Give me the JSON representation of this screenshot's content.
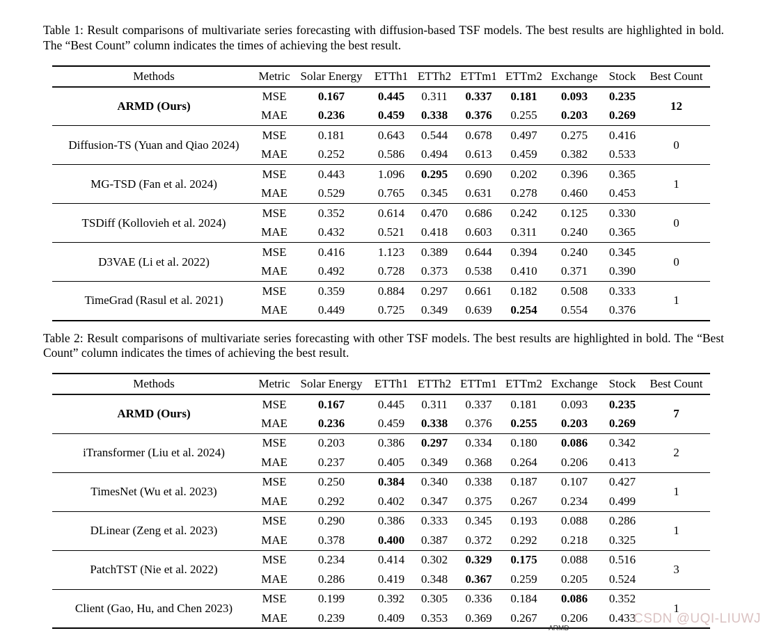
{
  "watermark": {
    "text": "CSDN @UQI-LIUWJ",
    "color": "#d9bfbf"
  },
  "figure_fragment_label": "ARMD",
  "tables": [
    {
      "caption": "Table 1: Result comparisons of multivariate series forecasting with diffusion-based TSF models. The best results are highlighted in bold. The “Best Count” column indicates the times of achieving the best result.",
      "columns": [
        "Methods",
        "Metric",
        "Solar Energy",
        "ETTh1",
        "ETTh2",
        "ETTm1",
        "ETTm2",
        "Exchange",
        "Stock",
        "Best Count"
      ],
      "metric_labels": [
        "MSE",
        "MAE"
      ],
      "groups": [
        {
          "method": "ARMD (Ours)",
          "bold_method": true,
          "mse": [
            "0.167",
            "0.445",
            "0.311",
            "0.337",
            "0.181",
            "0.093",
            "0.235"
          ],
          "mse_bold": [
            1,
            1,
            0,
            1,
            1,
            1,
            1
          ],
          "mae": [
            "0.236",
            "0.459",
            "0.338",
            "0.376",
            "0.255",
            "0.203",
            "0.269"
          ],
          "mae_bold": [
            1,
            1,
            1,
            1,
            0,
            1,
            1
          ],
          "best_count": "12",
          "bold_best": true
        },
        {
          "method": "Diffusion-TS (Yuan and Qiao 2024)",
          "bold_method": false,
          "mse": [
            "0.181",
            "0.643",
            "0.544",
            "0.678",
            "0.497",
            "0.275",
            "0.416"
          ],
          "mse_bold": [
            0,
            0,
            0,
            0,
            0,
            0,
            0
          ],
          "mae": [
            "0.252",
            "0.586",
            "0.494",
            "0.613",
            "0.459",
            "0.382",
            "0.533"
          ],
          "mae_bold": [
            0,
            0,
            0,
            0,
            0,
            0,
            0
          ],
          "best_count": "0",
          "bold_best": false
        },
        {
          "method": "MG-TSD (Fan et al. 2024)",
          "bold_method": false,
          "mse": [
            "0.443",
            "1.096",
            "0.295",
            "0.690",
            "0.202",
            "0.396",
            "0.365"
          ],
          "mse_bold": [
            0,
            0,
            1,
            0,
            0,
            0,
            0
          ],
          "mae": [
            "0.529",
            "0.765",
            "0.345",
            "0.631",
            "0.278",
            "0.460",
            "0.453"
          ],
          "mae_bold": [
            0,
            0,
            0,
            0,
            0,
            0,
            0
          ],
          "best_count": "1",
          "bold_best": false
        },
        {
          "method": "TSDiff (Kollovieh et al. 2024)",
          "bold_method": false,
          "mse": [
            "0.352",
            "0.614",
            "0.470",
            "0.686",
            "0.242",
            "0.125",
            "0.330"
          ],
          "mse_bold": [
            0,
            0,
            0,
            0,
            0,
            0,
            0
          ],
          "mae": [
            "0.432",
            "0.521",
            "0.418",
            "0.603",
            "0.311",
            "0.240",
            "0.365"
          ],
          "mae_bold": [
            0,
            0,
            0,
            0,
            0,
            0,
            0
          ],
          "best_count": "0",
          "bold_best": false
        },
        {
          "method": "D3VAE (Li et al. 2022)",
          "bold_method": false,
          "mse": [
            "0.416",
            "1.123",
            "0.389",
            "0.644",
            "0.394",
            "0.240",
            "0.345"
          ],
          "mse_bold": [
            0,
            0,
            0,
            0,
            0,
            0,
            0
          ],
          "mae": [
            "0.492",
            "0.728",
            "0.373",
            "0.538",
            "0.410",
            "0.371",
            "0.390"
          ],
          "mae_bold": [
            0,
            0,
            0,
            0,
            0,
            0,
            0
          ],
          "best_count": "0",
          "bold_best": false
        },
        {
          "method": "TimeGrad (Rasul et al. 2021)",
          "bold_method": false,
          "mse": [
            "0.359",
            "0.884",
            "0.297",
            "0.661",
            "0.182",
            "0.508",
            "0.333"
          ],
          "mse_bold": [
            0,
            0,
            0,
            0,
            0,
            0,
            0
          ],
          "mae": [
            "0.449",
            "0.725",
            "0.349",
            "0.639",
            "0.254",
            "0.554",
            "0.376"
          ],
          "mae_bold": [
            0,
            0,
            0,
            0,
            1,
            0,
            0
          ],
          "best_count": "1",
          "bold_best": false
        }
      ]
    },
    {
      "caption": "Table 2: Result comparisons of multivariate series forecasting with other TSF models. The best results are highlighted in bold. The “Best Count” column indicates the times of achieving the best result.",
      "columns": [
        "Methods",
        "Metric",
        "Solar Energy",
        "ETTh1",
        "ETTh2",
        "ETTm1",
        "ETTm2",
        "Exchange",
        "Stock",
        "Best Count"
      ],
      "metric_labels": [
        "MSE",
        "MAE"
      ],
      "groups": [
        {
          "method": "ARMD (Ours)",
          "bold_method": true,
          "mse": [
            "0.167",
            "0.445",
            "0.311",
            "0.337",
            "0.181",
            "0.093",
            "0.235"
          ],
          "mse_bold": [
            1,
            0,
            0,
            0,
            0,
            0,
            1
          ],
          "mae": [
            "0.236",
            "0.459",
            "0.338",
            "0.376",
            "0.255",
            "0.203",
            "0.269"
          ],
          "mae_bold": [
            1,
            0,
            1,
            0,
            1,
            1,
            1
          ],
          "best_count": "7",
          "bold_best": true
        },
        {
          "method": "iTransformer (Liu et al. 2024)",
          "bold_method": false,
          "mse": [
            "0.203",
            "0.386",
            "0.297",
            "0.334",
            "0.180",
            "0.086",
            "0.342"
          ],
          "mse_bold": [
            0,
            0,
            1,
            0,
            0,
            1,
            0
          ],
          "mae": [
            "0.237",
            "0.405",
            "0.349",
            "0.368",
            "0.264",
            "0.206",
            "0.413"
          ],
          "mae_bold": [
            0,
            0,
            0,
            0,
            0,
            0,
            0
          ],
          "best_count": "2",
          "bold_best": false
        },
        {
          "method": "TimesNet (Wu et al. 2023)",
          "bold_method": false,
          "mse": [
            "0.250",
            "0.384",
            "0.340",
            "0.338",
            "0.187",
            "0.107",
            "0.427"
          ],
          "mse_bold": [
            0,
            1,
            0,
            0,
            0,
            0,
            0
          ],
          "mae": [
            "0.292",
            "0.402",
            "0.347",
            "0.375",
            "0.267",
            "0.234",
            "0.499"
          ],
          "mae_bold": [
            0,
            0,
            0,
            0,
            0,
            0,
            0
          ],
          "best_count": "1",
          "bold_best": false
        },
        {
          "method": "DLinear (Zeng et al. 2023)",
          "bold_method": false,
          "mse": [
            "0.290",
            "0.386",
            "0.333",
            "0.345",
            "0.193",
            "0.088",
            "0.286"
          ],
          "mse_bold": [
            0,
            0,
            0,
            0,
            0,
            0,
            0
          ],
          "mae": [
            "0.378",
            "0.400",
            "0.387",
            "0.372",
            "0.292",
            "0.218",
            "0.325"
          ],
          "mae_bold": [
            0,
            1,
            0,
            0,
            0,
            0,
            0
          ],
          "best_count": "1",
          "bold_best": false
        },
        {
          "method": "PatchTST (Nie et al. 2022)",
          "bold_method": false,
          "mse": [
            "0.234",
            "0.414",
            "0.302",
            "0.329",
            "0.175",
            "0.088",
            "0.516"
          ],
          "mse_bold": [
            0,
            0,
            0,
            1,
            1,
            0,
            0
          ],
          "mae": [
            "0.286",
            "0.419",
            "0.348",
            "0.367",
            "0.259",
            "0.205",
            "0.524"
          ],
          "mae_bold": [
            0,
            0,
            0,
            1,
            0,
            0,
            0
          ],
          "best_count": "3",
          "bold_best": false
        },
        {
          "method": "Client (Gao, Hu, and Chen 2023)",
          "bold_method": false,
          "mse": [
            "0.199",
            "0.392",
            "0.305",
            "0.336",
            "0.184",
            "0.086",
            "0.352"
          ],
          "mse_bold": [
            0,
            0,
            0,
            0,
            0,
            1,
            0
          ],
          "mae": [
            "0.239",
            "0.409",
            "0.353",
            "0.369",
            "0.267",
            "0.206",
            "0.433"
          ],
          "mae_bold": [
            0,
            0,
            0,
            0,
            0,
            0,
            0
          ],
          "best_count": "1",
          "bold_best": false
        }
      ]
    }
  ]
}
